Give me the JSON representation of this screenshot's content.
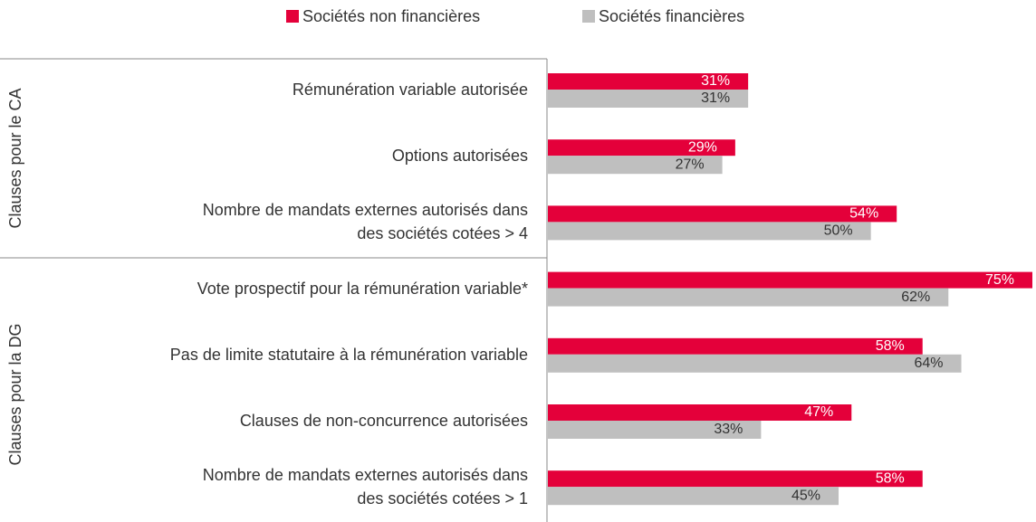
{
  "chart_data": {
    "type": "hbar",
    "categories": [
      "Rémunération variable autorisée",
      "Options autorisées",
      "Nombre de mandats externes autorisés dans\ndes sociétés cotées > 4",
      "Vote prospectif pour la rémunération variable*",
      "Pas de limite statutaire à la rémunération variable",
      "Clauses de non-concurrence autorisées",
      "Nombre de mandats externes autorisés dans\ndes sociétés cotées > 1"
    ],
    "category_groups": [
      "Clauses pour le CA",
      "Clauses pour le CA",
      "Clauses pour le CA",
      "Clauses pour la DG",
      "Clauses pour la DG",
      "Clauses pour la DG",
      "Clauses pour la DG"
    ],
    "series": [
      {
        "name": "Sociétés non financières",
        "color": "#e4003a",
        "values": [
          31,
          29,
          54,
          75,
          58,
          47,
          58
        ],
        "value_labels": [
          "31%",
          "29%",
          "54%",
          "75%",
          "58%",
          "47%",
          "58%"
        ]
      },
      {
        "name": "Sociétés financières",
        "color": "#bfbfbf",
        "values": [
          31,
          27,
          50,
          62,
          64,
          33,
          45
        ],
        "value_labels": [
          "31%",
          "27%",
          "50%",
          "62%",
          "64%",
          "33%",
          "45%"
        ]
      }
    ]
  }
}
